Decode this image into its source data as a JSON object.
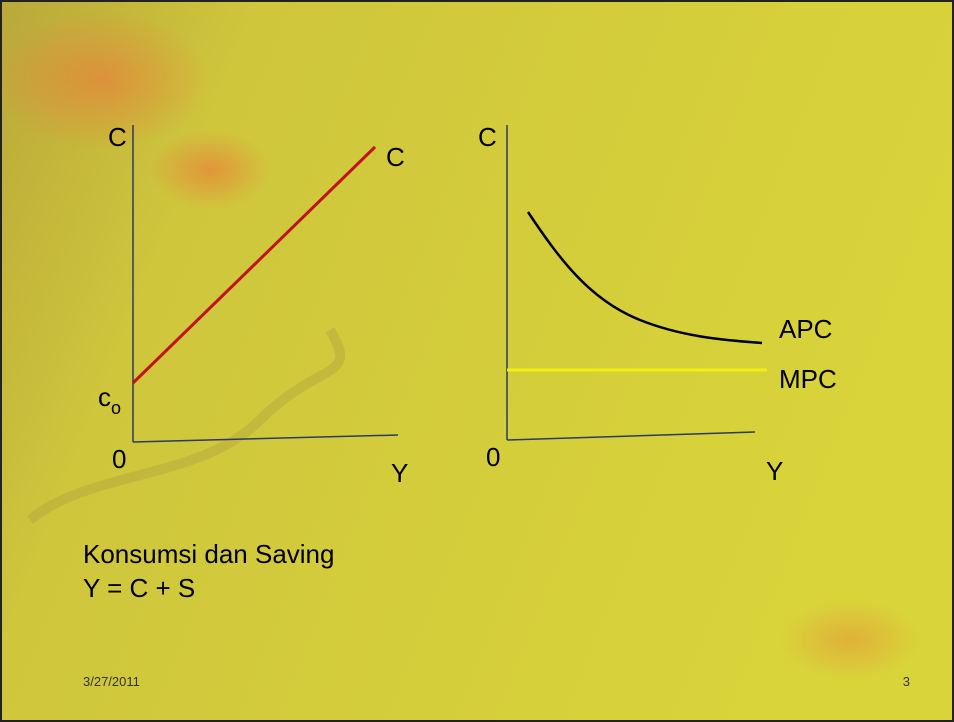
{
  "left_diagram": {
    "y_axis_label": "C",
    "curve_label": "C",
    "intercept_label": {
      "text": "c",
      "subscript": "o"
    },
    "origin_label": "0",
    "x_axis_label": "Y"
  },
  "right_diagram": {
    "y_axis_label": "C",
    "curves": [
      {
        "label": "APC"
      },
      {
        "label": "MPC"
      }
    ],
    "origin_label": "0",
    "x_axis_label": "Y"
  },
  "body": {
    "lines": [
      "Konsumsi dan Saving",
      "Y = C + S"
    ]
  },
  "footer": {
    "date": "3/27/2011",
    "page_number": "3"
  }
}
